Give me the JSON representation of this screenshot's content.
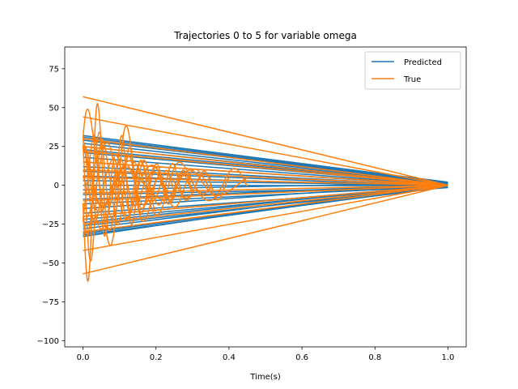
{
  "chart_data": {
    "type": "line",
    "title": "Trajectories 0 to 5 for variable omega",
    "xlabel": "Time(s)",
    "ylabel": "",
    "xlim": [
      -0.05,
      1.05
    ],
    "ylim": [
      -104,
      89
    ],
    "xticks": [
      0.0,
      0.2,
      0.4,
      0.6,
      0.8,
      1.0
    ],
    "xtick_labels": [
      "0.0",
      "0.2",
      "0.4",
      "0.6",
      "0.8",
      "1.0"
    ],
    "yticks": [
      -100,
      -75,
      -50,
      -25,
      0,
      25,
      50,
      75
    ],
    "ytick_labels": [
      "−100",
      "−75",
      "−50",
      "−25",
      "0",
      "25",
      "50",
      "75"
    ],
    "grid": false,
    "legend_position": "top-right",
    "series": [
      {
        "name": "Predicted",
        "color": "#1f77b4",
        "x": [
          0.0,
          1.0
        ],
        "lines_start_y": [
          32,
          31,
          30,
          29,
          27,
          25,
          23,
          21,
          18,
          15,
          12,
          9,
          6,
          3,
          0,
          -3,
          -6,
          -9,
          -12,
          -15,
          -18,
          -20,
          -22,
          -24,
          -26,
          -28,
          -30,
          -31,
          -32,
          -33
        ],
        "lines_end_y": [
          2,
          1.8,
          1.5,
          1.2,
          1,
          0.8,
          0.5,
          0.2,
          0,
          -0.2,
          -0.5,
          -0.8,
          -1,
          0.3,
          -0.3,
          1.6,
          -1.2,
          0.6,
          -0.6,
          1.3,
          -1.5,
          0.1,
          -0.1,
          0.9,
          -0.9,
          1.1,
          -1.1,
          0.4,
          -0.4,
          1.9
        ]
      },
      {
        "name": "True",
        "color": "#ff7f0e",
        "x": [
          0.0,
          1.0
        ],
        "lines_start_y": [
          57,
          44,
          30,
          25,
          22,
          15,
          10,
          5,
          -5,
          -10,
          -20,
          -25,
          -30,
          -42,
          -57
        ],
        "lines_end_y": [
          0,
          0,
          0,
          0,
          0,
          0,
          0,
          0,
          0,
          0,
          0,
          0,
          0,
          0,
          0
        ],
        "oscillations": [
          {
            "amp": 22,
            "decay": 4.0,
            "freq": 11.0,
            "phase": 0.9,
            "t_end": 0.35
          },
          {
            "amp": 28,
            "decay": 2.6,
            "freq": 7.0,
            "phase": 2.2,
            "t_end": 0.45
          },
          {
            "amp": 35,
            "decay": 5.0,
            "freq": 13.0,
            "phase": 4.1,
            "t_end": 0.3
          },
          {
            "amp": 18,
            "decay": 3.0,
            "freq": 9.0,
            "phase": 1.4,
            "t_end": 0.35
          },
          {
            "amp": 40,
            "decay": 6.5,
            "freq": 15.0,
            "phase": 5.3,
            "t_end": 0.25
          },
          {
            "amp": 15,
            "decay": 2.0,
            "freq": 6.0,
            "phase": 3.0,
            "t_end": 0.45
          },
          {
            "amp": 55,
            "decay": 4.5,
            "freq": 10.0,
            "phase": 0.3,
            "t_end": 0.2
          },
          {
            "amp": 45,
            "decay": 6.0,
            "freq": 14.0,
            "phase": 2.8,
            "t_end": 0.3
          },
          {
            "amp": 30,
            "decay": 3.5,
            "freq": 8.0,
            "phase": 4.7,
            "t_end": 0.35
          },
          {
            "amp": 25,
            "decay": 3.0,
            "freq": 12.0,
            "phase": 1.9,
            "t_end": 0.4
          },
          {
            "amp": 60,
            "decay": 7.0,
            "freq": 16.0,
            "phase": 3.6,
            "t_end": 0.2
          }
        ]
      }
    ]
  }
}
